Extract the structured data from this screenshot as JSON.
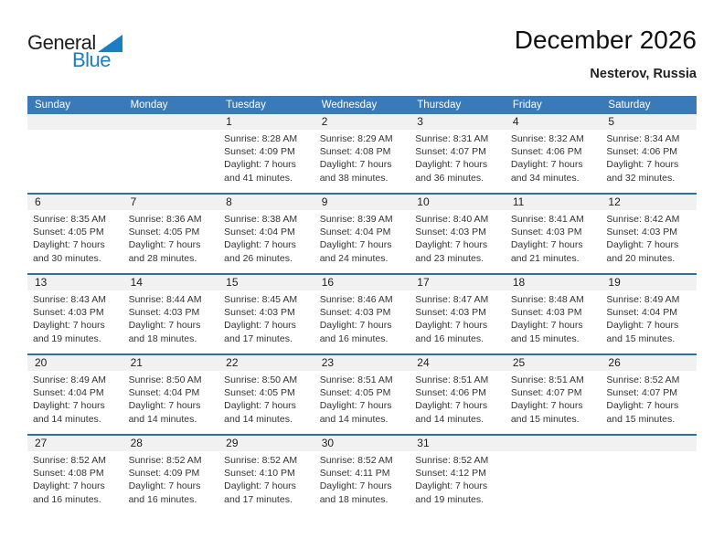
{
  "logo": {
    "text_general": "General",
    "text_blue": "Blue",
    "accent_color": "#1b7ec2"
  },
  "header": {
    "title": "December 2026",
    "location": "Nesterov, Russia"
  },
  "theme": {
    "header_bar_color": "#3a7ab8",
    "separator_color": "#2e6da6",
    "day_band_color": "#f1f1f1"
  },
  "weekdays": [
    "Sunday",
    "Monday",
    "Tuesday",
    "Wednesday",
    "Thursday",
    "Friday",
    "Saturday"
  ],
  "weeks": [
    [
      null,
      null,
      {
        "day": "1",
        "sunrise": "Sunrise: 8:28 AM",
        "sunset": "Sunset: 4:09 PM",
        "daylight": "Daylight: 7 hours and 41 minutes."
      },
      {
        "day": "2",
        "sunrise": "Sunrise: 8:29 AM",
        "sunset": "Sunset: 4:08 PM",
        "daylight": "Daylight: 7 hours and 38 minutes."
      },
      {
        "day": "3",
        "sunrise": "Sunrise: 8:31 AM",
        "sunset": "Sunset: 4:07 PM",
        "daylight": "Daylight: 7 hours and 36 minutes."
      },
      {
        "day": "4",
        "sunrise": "Sunrise: 8:32 AM",
        "sunset": "Sunset: 4:06 PM",
        "daylight": "Daylight: 7 hours and 34 minutes."
      },
      {
        "day": "5",
        "sunrise": "Sunrise: 8:34 AM",
        "sunset": "Sunset: 4:06 PM",
        "daylight": "Daylight: 7 hours and 32 minutes."
      }
    ],
    [
      {
        "day": "6",
        "sunrise": "Sunrise: 8:35 AM",
        "sunset": "Sunset: 4:05 PM",
        "daylight": "Daylight: 7 hours and 30 minutes."
      },
      {
        "day": "7",
        "sunrise": "Sunrise: 8:36 AM",
        "sunset": "Sunset: 4:05 PM",
        "daylight": "Daylight: 7 hours and 28 minutes."
      },
      {
        "day": "8",
        "sunrise": "Sunrise: 8:38 AM",
        "sunset": "Sunset: 4:04 PM",
        "daylight": "Daylight: 7 hours and 26 minutes."
      },
      {
        "day": "9",
        "sunrise": "Sunrise: 8:39 AM",
        "sunset": "Sunset: 4:04 PM",
        "daylight": "Daylight: 7 hours and 24 minutes."
      },
      {
        "day": "10",
        "sunrise": "Sunrise: 8:40 AM",
        "sunset": "Sunset: 4:03 PM",
        "daylight": "Daylight: 7 hours and 23 minutes."
      },
      {
        "day": "11",
        "sunrise": "Sunrise: 8:41 AM",
        "sunset": "Sunset: 4:03 PM",
        "daylight": "Daylight: 7 hours and 21 minutes."
      },
      {
        "day": "12",
        "sunrise": "Sunrise: 8:42 AM",
        "sunset": "Sunset: 4:03 PM",
        "daylight": "Daylight: 7 hours and 20 minutes."
      }
    ],
    [
      {
        "day": "13",
        "sunrise": "Sunrise: 8:43 AM",
        "sunset": "Sunset: 4:03 PM",
        "daylight": "Daylight: 7 hours and 19 minutes."
      },
      {
        "day": "14",
        "sunrise": "Sunrise: 8:44 AM",
        "sunset": "Sunset: 4:03 PM",
        "daylight": "Daylight: 7 hours and 18 minutes."
      },
      {
        "day": "15",
        "sunrise": "Sunrise: 8:45 AM",
        "sunset": "Sunset: 4:03 PM",
        "daylight": "Daylight: 7 hours and 17 minutes."
      },
      {
        "day": "16",
        "sunrise": "Sunrise: 8:46 AM",
        "sunset": "Sunset: 4:03 PM",
        "daylight": "Daylight: 7 hours and 16 minutes."
      },
      {
        "day": "17",
        "sunrise": "Sunrise: 8:47 AM",
        "sunset": "Sunset: 4:03 PM",
        "daylight": "Daylight: 7 hours and 16 minutes."
      },
      {
        "day": "18",
        "sunrise": "Sunrise: 8:48 AM",
        "sunset": "Sunset: 4:03 PM",
        "daylight": "Daylight: 7 hours and 15 minutes."
      },
      {
        "day": "19",
        "sunrise": "Sunrise: 8:49 AM",
        "sunset": "Sunset: 4:04 PM",
        "daylight": "Daylight: 7 hours and 15 minutes."
      }
    ],
    [
      {
        "day": "20",
        "sunrise": "Sunrise: 8:49 AM",
        "sunset": "Sunset: 4:04 PM",
        "daylight": "Daylight: 7 hours and 14 minutes."
      },
      {
        "day": "21",
        "sunrise": "Sunrise: 8:50 AM",
        "sunset": "Sunset: 4:04 PM",
        "daylight": "Daylight: 7 hours and 14 minutes."
      },
      {
        "day": "22",
        "sunrise": "Sunrise: 8:50 AM",
        "sunset": "Sunset: 4:05 PM",
        "daylight": "Daylight: 7 hours and 14 minutes."
      },
      {
        "day": "23",
        "sunrise": "Sunrise: 8:51 AM",
        "sunset": "Sunset: 4:05 PM",
        "daylight": "Daylight: 7 hours and 14 minutes."
      },
      {
        "day": "24",
        "sunrise": "Sunrise: 8:51 AM",
        "sunset": "Sunset: 4:06 PM",
        "daylight": "Daylight: 7 hours and 14 minutes."
      },
      {
        "day": "25",
        "sunrise": "Sunrise: 8:51 AM",
        "sunset": "Sunset: 4:07 PM",
        "daylight": "Daylight: 7 hours and 15 minutes."
      },
      {
        "day": "26",
        "sunrise": "Sunrise: 8:52 AM",
        "sunset": "Sunset: 4:07 PM",
        "daylight": "Daylight: 7 hours and 15 minutes."
      }
    ],
    [
      {
        "day": "27",
        "sunrise": "Sunrise: 8:52 AM",
        "sunset": "Sunset: 4:08 PM",
        "daylight": "Daylight: 7 hours and 16 minutes."
      },
      {
        "day": "28",
        "sunrise": "Sunrise: 8:52 AM",
        "sunset": "Sunset: 4:09 PM",
        "daylight": "Daylight: 7 hours and 16 minutes."
      },
      {
        "day": "29",
        "sunrise": "Sunrise: 8:52 AM",
        "sunset": "Sunset: 4:10 PM",
        "daylight": "Daylight: 7 hours and 17 minutes."
      },
      {
        "day": "30",
        "sunrise": "Sunrise: 8:52 AM",
        "sunset": "Sunset: 4:11 PM",
        "daylight": "Daylight: 7 hours and 18 minutes."
      },
      {
        "day": "31",
        "sunrise": "Sunrise: 8:52 AM",
        "sunset": "Sunset: 4:12 PM",
        "daylight": "Daylight: 7 hours and 19 minutes."
      },
      null,
      null
    ]
  ]
}
